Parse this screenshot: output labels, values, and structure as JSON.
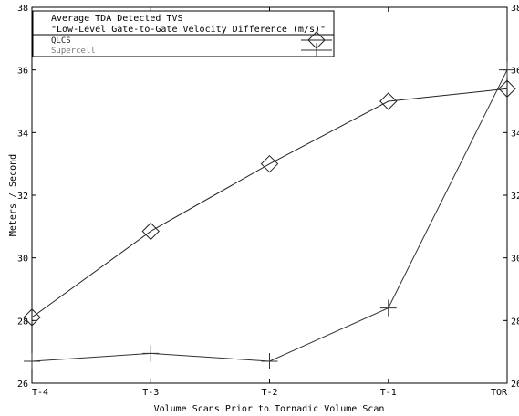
{
  "chart_data": {
    "type": "line",
    "title": "",
    "xlabel": "Volume Scans Prior to Tornadic Volume Scan",
    "ylabel": "Meters / Second",
    "categories": [
      "T-4",
      "T-3",
      "T-2",
      "T-1",
      "TOR"
    ],
    "ylim": [
      26,
      38
    ],
    "yticks": [
      26,
      28,
      30,
      32,
      34,
      36,
      38
    ],
    "grid": false,
    "legend_position": "top-left",
    "legend_title": [
      "Average TDA Detected TVS",
      "\"Low-Level Gate-to-Gate Velocity Difference (m/s)\""
    ],
    "series": [
      {
        "name": "QLCS",
        "marker": "diamond",
        "values": [
          28.1,
          30.85,
          33.0,
          35.0,
          35.4
        ]
      },
      {
        "name": "Supercell",
        "marker": "plus",
        "values": [
          26.7,
          26.95,
          26.7,
          28.4,
          36.0
        ]
      }
    ],
    "colors": {
      "axis": "#000000",
      "qlcs_line": "#222222",
      "supercell_line": "#333333",
      "supercell_label": "#777777"
    }
  }
}
